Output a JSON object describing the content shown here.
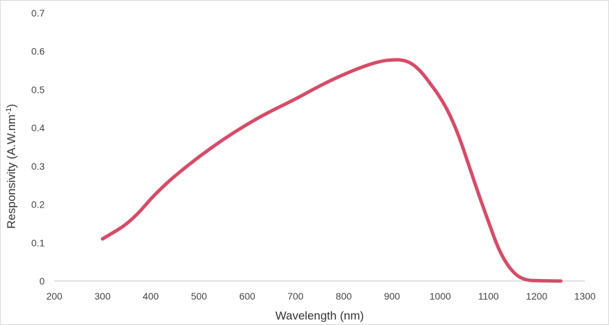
{
  "chart_data": {
    "type": "line",
    "title": "",
    "xlabel": "Wavelength (nm)",
    "ylabel": {
      "prefix": "Responsivity (A.W.nm",
      "superscript": "-1",
      "suffix": ")"
    },
    "xlim": [
      200,
      1300
    ],
    "ylim": [
      0,
      0.7
    ],
    "x_ticks": [
      "200",
      "300",
      "400",
      "500",
      "600",
      "700",
      "800",
      "900",
      "1000",
      "1100",
      "1200",
      "1300"
    ],
    "y_ticks": [
      "0",
      "0.1",
      "0.2",
      "0.3",
      "0.4",
      "0.5",
      "0.6",
      "0.7"
    ],
    "grid": false,
    "legend": "none",
    "series": [
      {
        "color": "#d64c68",
        "x": [
          300,
          320,
          340,
          360,
          380,
          400,
          420,
          450,
          500,
          550,
          600,
          650,
          700,
          750,
          800,
          850,
          880,
          900,
          920,
          940,
          960,
          980,
          1000,
          1020,
          1040,
          1060,
          1080,
          1100,
          1120,
          1140,
          1160,
          1180,
          1200,
          1220,
          1250
        ],
        "y": [
          0.11,
          0.125,
          0.14,
          0.16,
          0.185,
          0.215,
          0.24,
          0.275,
          0.325,
          0.37,
          0.41,
          0.445,
          0.475,
          0.51,
          0.54,
          0.565,
          0.575,
          0.578,
          0.578,
          0.57,
          0.548,
          0.515,
          0.48,
          0.435,
          0.375,
          0.3,
          0.225,
          0.155,
          0.085,
          0.04,
          0.012,
          0.002,
          0.001,
          0.0005,
          0.0
        ]
      }
    ]
  }
}
